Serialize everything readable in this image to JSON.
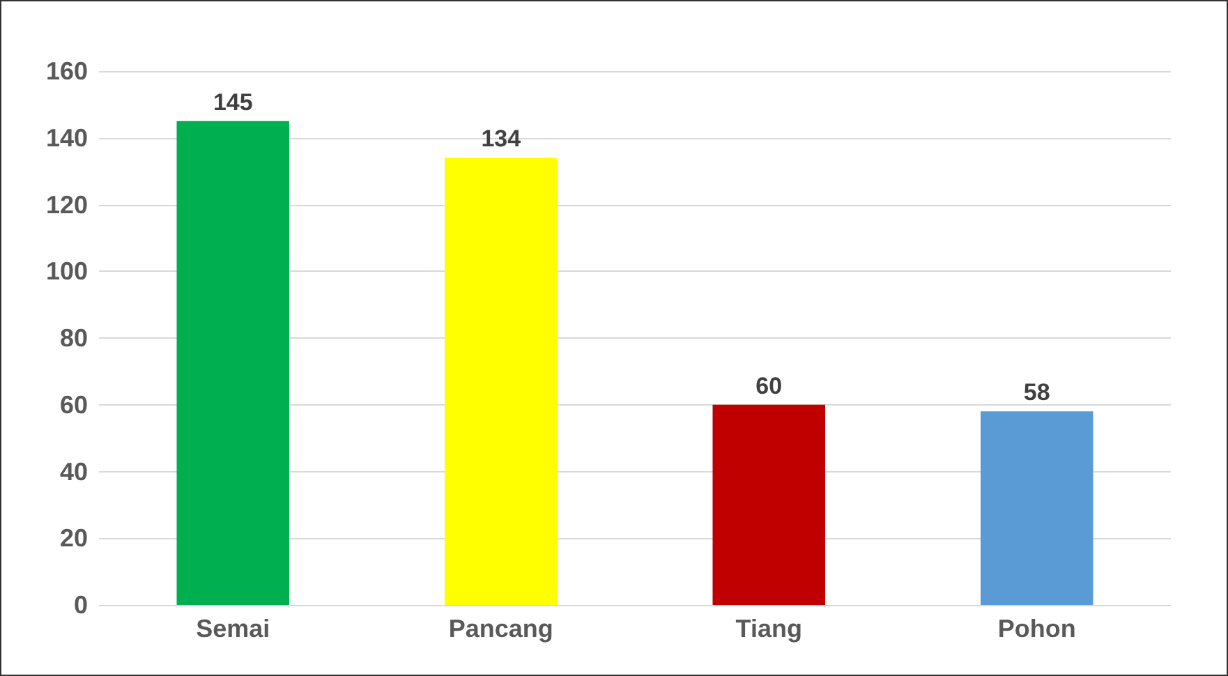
{
  "chart_data": {
    "type": "bar",
    "categories": [
      "Semai",
      "Pancang",
      "Tiang",
      "Pohon"
    ],
    "values": [
      145,
      134,
      60,
      58
    ],
    "colors": [
      "#00b050",
      "#ffff00",
      "#c00000",
      "#5b9bd5"
    ],
    "ylim": [
      0,
      160
    ],
    "yticks": [
      0,
      20,
      40,
      60,
      80,
      100,
      120,
      140,
      160
    ],
    "grid": "y",
    "data_labels": true
  }
}
